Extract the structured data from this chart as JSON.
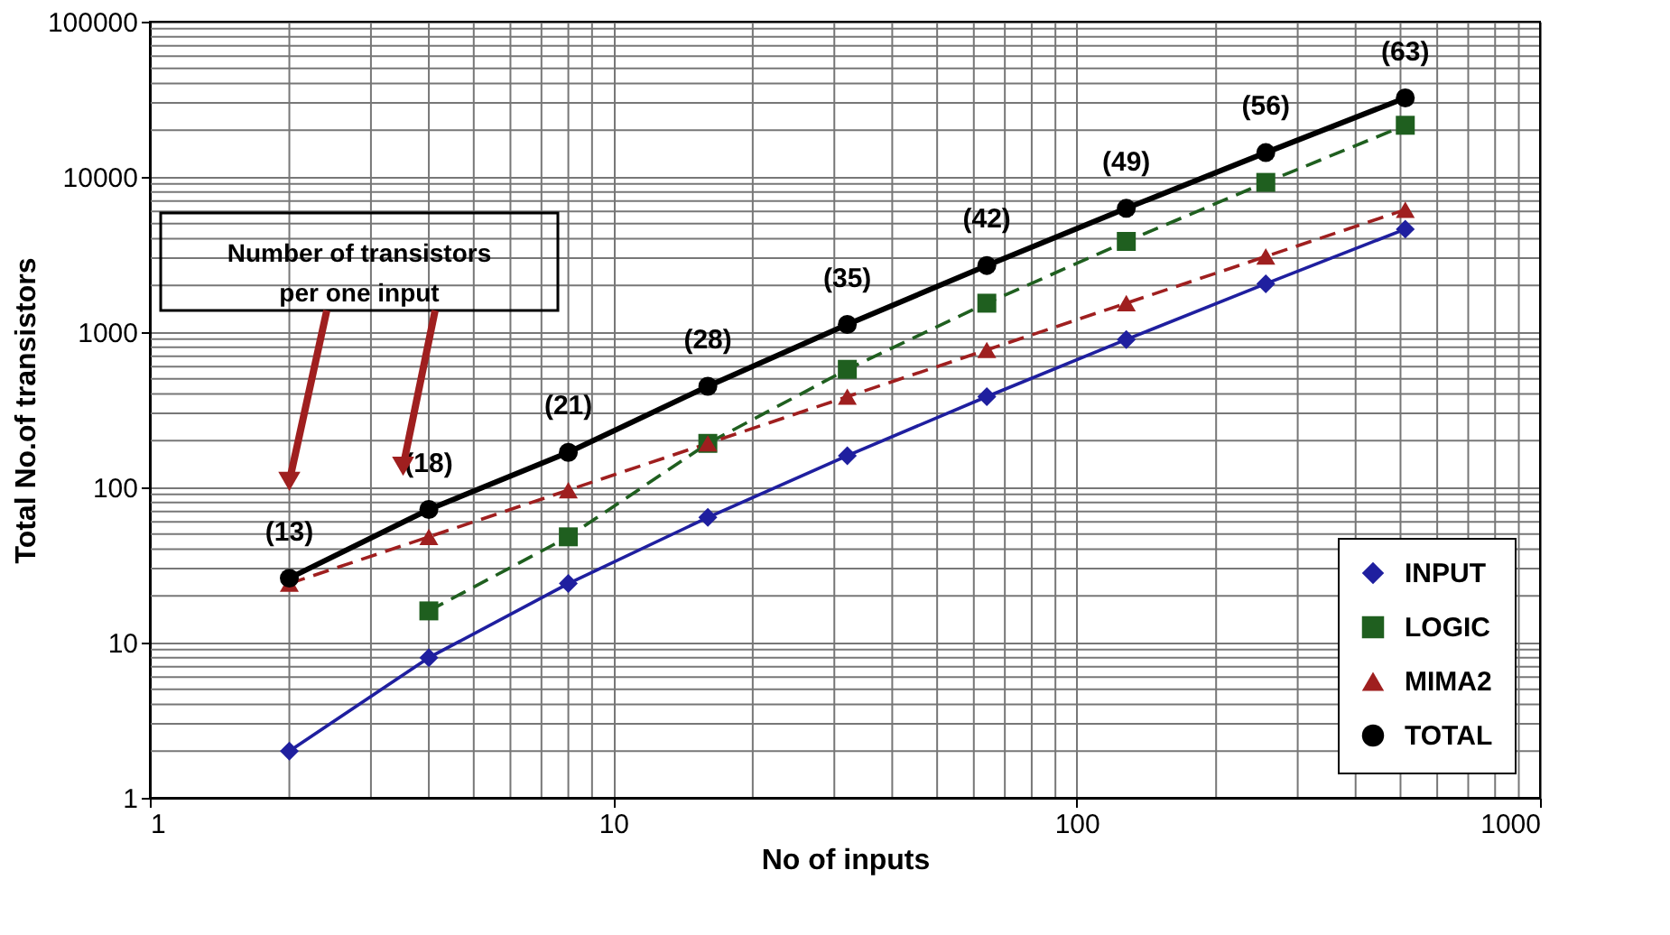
{
  "chart_data": {
    "type": "line",
    "xlabel": "No of inputs",
    "ylabel": "Total No.of transistors",
    "xlim": [
      1,
      1000
    ],
    "ylim": [
      1,
      100000
    ],
    "xticks": [
      1,
      10,
      100,
      1000
    ],
    "yticks": [
      1,
      10,
      100,
      1000,
      10000,
      100000
    ],
    "log": "xy",
    "grid": true,
    "legend": "bottom right",
    "series": [
      {
        "name": "INPUT",
        "color": "#1f1f9f",
        "marker": "diamond",
        "line_style": "solid",
        "x": [
          2,
          4,
          8,
          16,
          32,
          64,
          128,
          256,
          512
        ],
        "values": [
          2,
          8,
          24,
          64,
          160,
          384,
          896,
          2048,
          4608
        ]
      },
      {
        "name": "LOGIC",
        "color": "#1f5f1f",
        "marker": "square",
        "line_style": "dashed",
        "x": [
          4,
          8,
          16,
          32,
          64,
          128,
          256,
          512
        ],
        "values": [
          16,
          48,
          192,
          576,
          1536,
          3840,
          9216,
          21504
        ]
      },
      {
        "name": "MIMA2",
        "color": "#9f1f1f",
        "marker": "triangle",
        "line_style": "dashed",
        "x": [
          2,
          4,
          8,
          16,
          32,
          64,
          128,
          256,
          512
        ],
        "values": [
          24,
          48,
          96,
          192,
          384,
          768,
          1536,
          3072,
          6144
        ]
      },
      {
        "name": "TOTAL",
        "color": "#000000",
        "marker": "circle",
        "line_style": "solid",
        "x": [
          2,
          4,
          8,
          16,
          32,
          64,
          128,
          256,
          512
        ],
        "values": [
          26,
          72,
          168,
          448,
          1120,
          2688,
          6272,
          14336,
          32256
        ]
      }
    ],
    "annotations": [
      {
        "text": "(13)",
        "x": 2,
        "y": 26
      },
      {
        "text": "(18)",
        "x": 4,
        "y": 72
      },
      {
        "text": "(21)",
        "x": 8,
        "y": 168
      },
      {
        "text": "(28)",
        "x": 16,
        "y": 448
      },
      {
        "text": "(35)",
        "x": 32,
        "y": 1120
      },
      {
        "text": "(42)",
        "x": 64,
        "y": 2688
      },
      {
        "text": "(49)",
        "x": 128,
        "y": 6272
      },
      {
        "text": "(56)",
        "x": 256,
        "y": 14336
      },
      {
        "text": "(63)",
        "x": 512,
        "y": 32256
      },
      "Number of transistors\nper one input"
    ]
  }
}
